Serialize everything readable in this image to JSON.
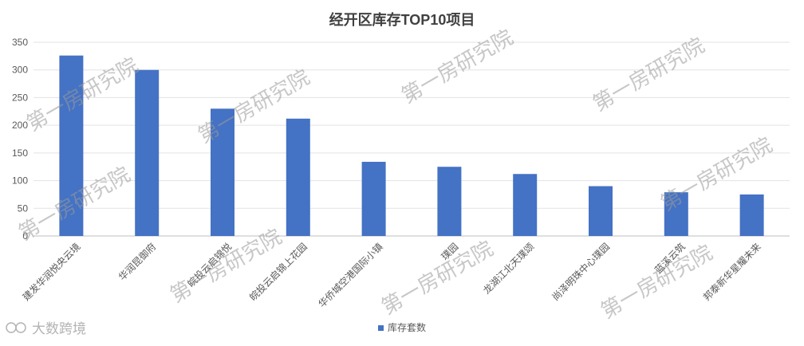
{
  "chart_data": {
    "type": "bar",
    "title": "经开区库存TOP10项目",
    "categories": [
      "建发华润悦央云境",
      "华润昆御府",
      "皖投云启锦悦",
      "皖投云启锦上花园",
      "华侨城空港国际小镇",
      "璞园",
      "龙湖江北天璞颂",
      "尚泽明珠中心璞园",
      "蓝溪云筑",
      "邦泰新华星耀未来"
    ],
    "series": [
      {
        "name": "库存套数",
        "values": [
          326,
          300,
          230,
          212,
          134,
          125,
          112,
          90,
          79,
          75
        ]
      }
    ],
    "ylim": [
      0,
      350
    ],
    "yticks": [
      0,
      50,
      100,
      150,
      200,
      250,
      300,
      350
    ],
    "grid": true,
    "legend": "bottom",
    "color": "#4472C4"
  },
  "watermark": "第一房研究院",
  "brand": "大数跨境"
}
